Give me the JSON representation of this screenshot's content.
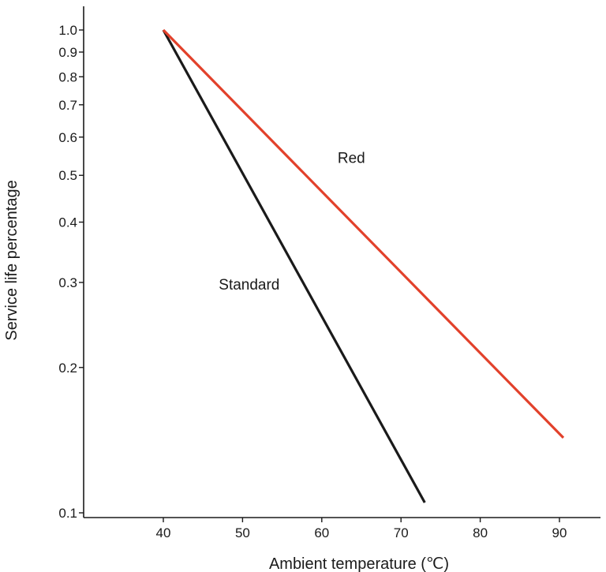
{
  "chart_data": {
    "type": "line",
    "title": "",
    "xlabel": "Ambient temperature (℃)",
    "ylabel": "Service life percentage",
    "xscale": "linear",
    "yscale": "log",
    "xlim": [
      33,
      95
    ],
    "ylim": [
      0.1,
      1.1
    ],
    "grid": false,
    "xticks": [
      40,
      50,
      60,
      70,
      80,
      90
    ],
    "xtick_labels": [
      "40",
      "50",
      "60",
      "70",
      "80",
      "90"
    ],
    "yticks": [
      0.1,
      0.2,
      0.3,
      0.4,
      0.5,
      0.6,
      0.7,
      0.8,
      0.9,
      1.0
    ],
    "ytick_labels": [
      "0.1",
      "0.2",
      "0.3",
      "0.4",
      "0.5",
      "0.6",
      "0.7",
      "0.8",
      "0.9",
      "1.0"
    ],
    "series": [
      {
        "name": "Standard",
        "color": "#1a1a1a",
        "x": [
          40,
          73
        ],
        "y": [
          1.0,
          0.105
        ],
        "label_at": [
          47,
          0.29
        ]
      },
      {
        "name": "Red",
        "color": "#e2412b",
        "x": [
          40,
          90.5
        ],
        "y": [
          1.0,
          0.143
        ],
        "label_at": [
          62,
          0.53
        ]
      }
    ]
  }
}
